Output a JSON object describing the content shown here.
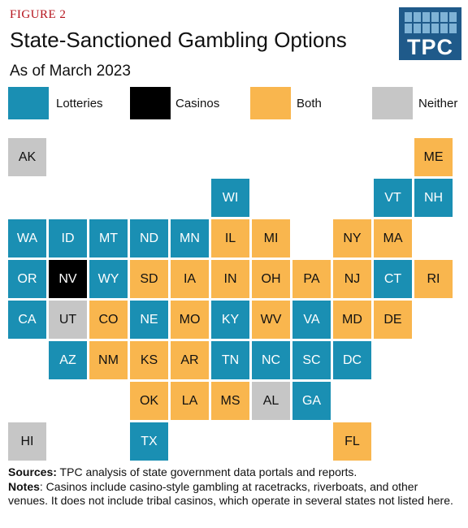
{
  "figure_label": "FIGURE 2",
  "title": "State-Sanctioned Gambling Options",
  "subtitle": "As of March 2023",
  "logo_text": "TPC",
  "colors": {
    "lotteries": "#1a8fb3",
    "casinos": "#000000",
    "both": "#f9b64e",
    "neither": "#c6c6c6",
    "logo": "#1f5a8a",
    "figure_label": "#b5121b"
  },
  "legend": [
    {
      "key": "lotteries",
      "label": "Lotteries"
    },
    {
      "key": "casinos",
      "label": "Casinos"
    },
    {
      "key": "both",
      "label": "Both"
    },
    {
      "key": "neither",
      "label": "Neither"
    }
  ],
  "states": [
    {
      "abbr": "AK",
      "cat": "neither",
      "row": 0,
      "col": 0
    },
    {
      "abbr": "ME",
      "cat": "both",
      "row": 0,
      "col": 10
    },
    {
      "abbr": "WI",
      "cat": "lotteries",
      "row": 1,
      "col": 5
    },
    {
      "abbr": "VT",
      "cat": "lotteries",
      "row": 1,
      "col": 9
    },
    {
      "abbr": "NH",
      "cat": "lotteries",
      "row": 1,
      "col": 10
    },
    {
      "abbr": "WA",
      "cat": "lotteries",
      "row": 2,
      "col": 0
    },
    {
      "abbr": "ID",
      "cat": "lotteries",
      "row": 2,
      "col": 1
    },
    {
      "abbr": "MT",
      "cat": "lotteries",
      "row": 2,
      "col": 2
    },
    {
      "abbr": "ND",
      "cat": "lotteries",
      "row": 2,
      "col": 3
    },
    {
      "abbr": "MN",
      "cat": "lotteries",
      "row": 2,
      "col": 4
    },
    {
      "abbr": "IL",
      "cat": "both",
      "row": 2,
      "col": 5
    },
    {
      "abbr": "MI",
      "cat": "both",
      "row": 2,
      "col": 6
    },
    {
      "abbr": "NY",
      "cat": "both",
      "row": 2,
      "col": 8
    },
    {
      "abbr": "MA",
      "cat": "both",
      "row": 2,
      "col": 9
    },
    {
      "abbr": "OR",
      "cat": "lotteries",
      "row": 3,
      "col": 0
    },
    {
      "abbr": "NV",
      "cat": "casinos",
      "row": 3,
      "col": 1
    },
    {
      "abbr": "WY",
      "cat": "lotteries",
      "row": 3,
      "col": 2
    },
    {
      "abbr": "SD",
      "cat": "both",
      "row": 3,
      "col": 3
    },
    {
      "abbr": "IA",
      "cat": "both",
      "row": 3,
      "col": 4
    },
    {
      "abbr": "IN",
      "cat": "both",
      "row": 3,
      "col": 5
    },
    {
      "abbr": "OH",
      "cat": "both",
      "row": 3,
      "col": 6
    },
    {
      "abbr": "PA",
      "cat": "both",
      "row": 3,
      "col": 7
    },
    {
      "abbr": "NJ",
      "cat": "both",
      "row": 3,
      "col": 8
    },
    {
      "abbr": "CT",
      "cat": "lotteries",
      "row": 3,
      "col": 9
    },
    {
      "abbr": "RI",
      "cat": "both",
      "row": 3,
      "col": 10
    },
    {
      "abbr": "CA",
      "cat": "lotteries",
      "row": 4,
      "col": 0
    },
    {
      "abbr": "UT",
      "cat": "neither",
      "row": 4,
      "col": 1
    },
    {
      "abbr": "CO",
      "cat": "both",
      "row": 4,
      "col": 2
    },
    {
      "abbr": "NE",
      "cat": "lotteries",
      "row": 4,
      "col": 3
    },
    {
      "abbr": "MO",
      "cat": "both",
      "row": 4,
      "col": 4
    },
    {
      "abbr": "KY",
      "cat": "lotteries",
      "row": 4,
      "col": 5
    },
    {
      "abbr": "WV",
      "cat": "both",
      "row": 4,
      "col": 6
    },
    {
      "abbr": "VA",
      "cat": "lotteries",
      "row": 4,
      "col": 7
    },
    {
      "abbr": "MD",
      "cat": "both",
      "row": 4,
      "col": 8
    },
    {
      "abbr": "DE",
      "cat": "both",
      "row": 4,
      "col": 9
    },
    {
      "abbr": "AZ",
      "cat": "lotteries",
      "row": 5,
      "col": 1
    },
    {
      "abbr": "NM",
      "cat": "both",
      "row": 5,
      "col": 2
    },
    {
      "abbr": "KS",
      "cat": "both",
      "row": 5,
      "col": 3
    },
    {
      "abbr": "AR",
      "cat": "both",
      "row": 5,
      "col": 4
    },
    {
      "abbr": "TN",
      "cat": "lotteries",
      "row": 5,
      "col": 5
    },
    {
      "abbr": "NC",
      "cat": "lotteries",
      "row": 5,
      "col": 6
    },
    {
      "abbr": "SC",
      "cat": "lotteries",
      "row": 5,
      "col": 7
    },
    {
      "abbr": "DC",
      "cat": "lotteries",
      "row": 5,
      "col": 8
    },
    {
      "abbr": "OK",
      "cat": "both",
      "row": 6,
      "col": 3
    },
    {
      "abbr": "LA",
      "cat": "both",
      "row": 6,
      "col": 4
    },
    {
      "abbr": "MS",
      "cat": "both",
      "row": 6,
      "col": 5
    },
    {
      "abbr": "AL",
      "cat": "neither",
      "row": 6,
      "col": 6
    },
    {
      "abbr": "GA",
      "cat": "lotteries",
      "row": 6,
      "col": 7
    },
    {
      "abbr": "HI",
      "cat": "neither",
      "row": 7,
      "col": 0
    },
    {
      "abbr": "TX",
      "cat": "lotteries",
      "row": 7,
      "col": 3
    },
    {
      "abbr": "FL",
      "cat": "both",
      "row": 7,
      "col": 8
    }
  ],
  "notes": {
    "sources_label": "Sources:",
    "sources_text": " TPC analysis of state government data portals and reports.",
    "notes_label": "Notes",
    "notes_text": ": Casinos include casino-style gambling at racetracks, riverboats, and other venues. It does not include tribal casinos, which operate in several states not listed here."
  }
}
